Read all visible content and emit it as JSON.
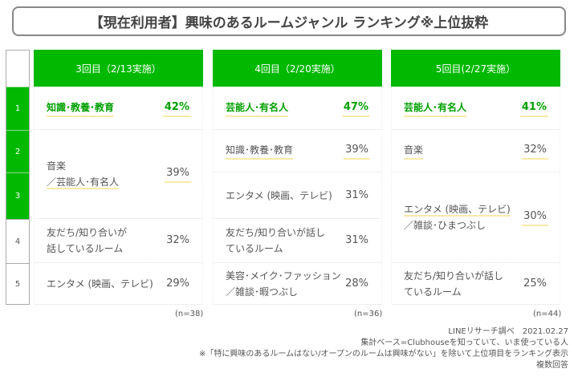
{
  "title": "【現在利用者】興味のあるルームジャンル ランキング※上位抜粋",
  "ranks": [
    "1",
    "2",
    "3",
    "4",
    "5"
  ],
  "accent": "#00b900",
  "columns": [
    {
      "header": "3回目（2/13実施）",
      "n": "(n=38)",
      "rows": [
        {
          "label": "知識･教養･教育",
          "pct": "42%"
        },
        {
          "label1": "音楽",
          "label2": "／芸能人･有名人",
          "pct": "39%"
        },
        {
          "label1": "友だち/知り合いが",
          "label2": "話しているルーム",
          "pct": "32%"
        },
        {
          "label": "エンタメ (映画、テレビ)",
          "pct": "29%"
        }
      ]
    },
    {
      "header": "4回目（2/20実施）",
      "n": "(n=36)",
      "rows": [
        {
          "label": "芸能人･有名人",
          "pct": "47%"
        },
        {
          "label": "知識･教養･教育",
          "pct": "39%"
        },
        {
          "label": "エンタメ (映画、テレビ)",
          "pct": "31%"
        },
        {
          "label1": "友だち/知り合いが話し",
          "label2": "ているルーム",
          "pct": "31%"
        },
        {
          "label1": "美容･メイク･ファッション",
          "label2": "／雑談･暇つぶし",
          "pct": "28%"
        }
      ]
    },
    {
      "header": "5回目(2/27実施）",
      "n": "(n=44)",
      "rows": [
        {
          "label": "芸能人･有名人",
          "pct": "41%"
        },
        {
          "label": "音楽",
          "pct": "32%"
        },
        {
          "label1": "エンタメ (映画、テレビ)",
          "label2": "／雑談･ひまつぶし",
          "pct": "30%"
        },
        {
          "label1": "友だち/知り合いが話し",
          "label2": "ているルーム",
          "pct": "25%"
        }
      ]
    }
  ],
  "footer": [
    "LINEリサーチ調べ　2021.02.27",
    "集計ベース=Clubhouseを知っていて、いま使っている人",
    "※「特に興味のあるルームはない/オープンのルームは興味がない」を除いて上位項目をランキング表示",
    "複数回答"
  ]
}
